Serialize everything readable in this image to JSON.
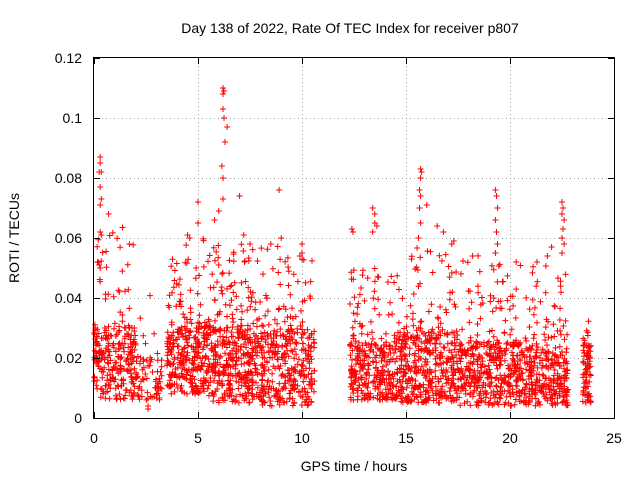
{
  "chart_data": {
    "type": "scatter",
    "title": "Day 138 of 2022, Rate Of TEC Index for receiver p807",
    "xlabel": "GPS time / hours",
    "ylabel": "ROTI / TECUs",
    "xlim": [
      0,
      25
    ],
    "ylim": [
      0,
      0.12
    ],
    "xticks": [
      "0",
      "5",
      "10",
      "15",
      "20",
      "25"
    ],
    "yticks": [
      "0",
      "0.02",
      "0.04",
      "0.06",
      "0.08",
      "0.1",
      "0.12"
    ],
    "grid": true,
    "marker": "+",
    "color": "#ff0000",
    "series": [
      {
        "bands": [
          {
            "x0": 0.0,
            "x1": 2.0,
            "lo": 0.006,
            "hi": 0.03,
            "n": 260,
            "spread": 0.035
          },
          {
            "x0": 2.0,
            "x1": 3.3,
            "lo": 0.006,
            "hi": 0.02,
            "n": 70,
            "spread": 0.025
          },
          {
            "x0": 3.5,
            "x1": 5.5,
            "lo": 0.008,
            "hi": 0.03,
            "n": 300,
            "spread": 0.03
          },
          {
            "x0": 5.5,
            "x1": 7.5,
            "lo": 0.005,
            "hi": 0.03,
            "n": 320,
            "spread": 0.03
          },
          {
            "x0": 7.5,
            "x1": 10.6,
            "lo": 0.004,
            "hi": 0.028,
            "n": 420,
            "spread": 0.03
          },
          {
            "x0": 12.3,
            "x1": 14.5,
            "lo": 0.006,
            "hi": 0.025,
            "n": 300,
            "spread": 0.025
          },
          {
            "x0": 14.5,
            "x1": 17.5,
            "lo": 0.005,
            "hi": 0.028,
            "n": 420,
            "spread": 0.03
          },
          {
            "x0": 17.5,
            "x1": 21.0,
            "lo": 0.004,
            "hi": 0.025,
            "n": 460,
            "spread": 0.03
          },
          {
            "x0": 21.0,
            "x1": 22.8,
            "lo": 0.004,
            "hi": 0.022,
            "n": 240,
            "spread": 0.03
          },
          {
            "x0": 23.5,
            "x1": 23.9,
            "lo": 0.005,
            "hi": 0.024,
            "n": 80,
            "spread": 0.01
          }
        ],
        "points": [
          [
            0.3,
            0.087
          ],
          [
            0.3,
            0.085
          ],
          [
            0.35,
            0.082
          ],
          [
            0.25,
            0.082
          ],
          [
            0.3,
            0.077
          ],
          [
            0.35,
            0.073
          ],
          [
            0.3,
            0.071
          ],
          [
            0.7,
            0.068
          ],
          [
            0.3,
            0.062
          ],
          [
            0.35,
            0.061
          ],
          [
            0.2,
            0.052
          ],
          [
            0.25,
            0.051
          ],
          [
            0.3,
            0.05
          ],
          [
            2.6,
            0.003
          ],
          [
            2.6,
            0.004
          ],
          [
            6.2,
            0.11
          ],
          [
            6.25,
            0.109
          ],
          [
            6.2,
            0.108
          ],
          [
            6.2,
            0.103
          ],
          [
            6.25,
            0.1
          ],
          [
            6.4,
            0.097
          ],
          [
            6.3,
            0.092
          ],
          [
            6.15,
            0.084
          ],
          [
            6.2,
            0.08
          ],
          [
            6.2,
            0.073
          ],
          [
            5.0,
            0.072
          ],
          [
            5.8,
            0.066
          ],
          [
            6.0,
            0.069
          ],
          [
            7.0,
            0.074
          ],
          [
            5.0,
            0.065
          ],
          [
            4.5,
            0.061
          ],
          [
            4.6,
            0.06
          ],
          [
            8.9,
            0.076
          ],
          [
            9.0,
            0.06
          ],
          [
            8.5,
            0.058
          ],
          [
            10.0,
            0.058
          ],
          [
            7.5,
            0.058
          ],
          [
            7.2,
            0.061
          ],
          [
            12.4,
            0.063
          ],
          [
            12.45,
            0.062
          ],
          [
            13.4,
            0.07
          ],
          [
            13.5,
            0.068
          ],
          [
            13.5,
            0.065
          ],
          [
            13.6,
            0.064
          ],
          [
            13.4,
            0.062
          ],
          [
            15.7,
            0.083
          ],
          [
            15.75,
            0.082
          ],
          [
            15.7,
            0.08
          ],
          [
            15.65,
            0.076
          ],
          [
            15.7,
            0.074
          ],
          [
            15.65,
            0.07
          ],
          [
            15.7,
            0.065
          ],
          [
            15.6,
            0.06
          ],
          [
            16.0,
            0.071
          ],
          [
            16.5,
            0.064
          ],
          [
            16.8,
            0.062
          ],
          [
            17.3,
            0.059
          ],
          [
            19.3,
            0.076
          ],
          [
            19.35,
            0.074
          ],
          [
            19.4,
            0.07
          ],
          [
            19.3,
            0.066
          ],
          [
            19.35,
            0.062
          ],
          [
            19.4,
            0.058
          ],
          [
            19.3,
            0.055
          ],
          [
            22.5,
            0.072
          ],
          [
            22.55,
            0.07
          ],
          [
            22.5,
            0.068
          ],
          [
            22.6,
            0.066
          ],
          [
            22.55,
            0.063
          ],
          [
            22.5,
            0.06
          ],
          [
            22.6,
            0.058
          ],
          [
            22.5,
            0.055
          ],
          [
            22.0,
            0.057
          ],
          [
            21.8,
            0.054
          ],
          [
            20.3,
            0.052
          ],
          [
            21.3,
            0.052
          ],
          [
            17.2,
            0.058
          ],
          [
            18.2,
            0.054
          ],
          [
            10.0,
            0.055
          ],
          [
            9.9,
            0.054
          ]
        ]
      }
    ]
  }
}
